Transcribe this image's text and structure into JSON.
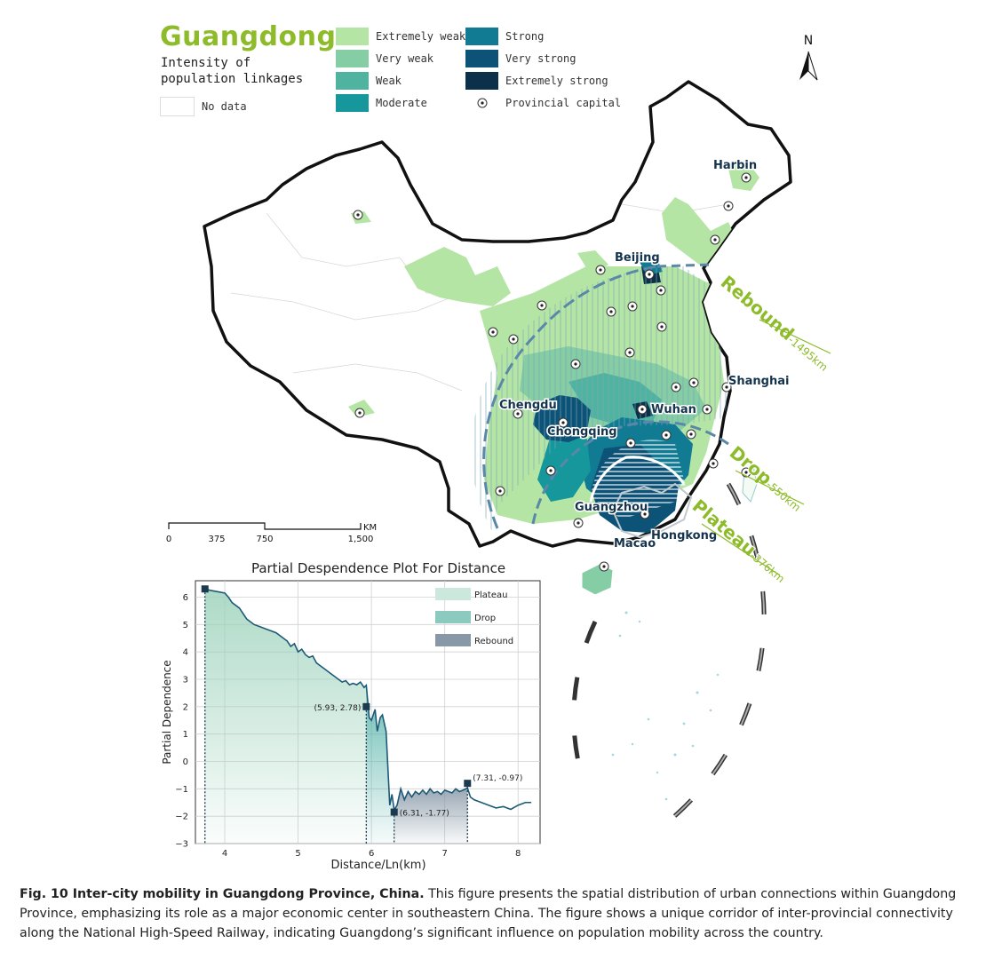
{
  "map": {
    "title": "Guangdong",
    "subtitle": "Intensity of population linkages",
    "no_data_label": "No data",
    "north_label": "N",
    "legend": [
      {
        "label": "Extremely weak",
        "color": "#b5e5a4"
      },
      {
        "label": "Very weak",
        "color": "#85cda4"
      },
      {
        "label": "Weak",
        "color": "#4fb39f"
      },
      {
        "label": "Moderate",
        "color": "#15979c"
      },
      {
        "label": "Strong",
        "color": "#117b93"
      },
      {
        "label": "Very strong",
        "color": "#0d5277"
      },
      {
        "label": "Extremely strong",
        "color": "#0c2f4a"
      },
      {
        "label": "Provincial capital",
        "color": "#000000"
      }
    ],
    "cities": {
      "harbin": "Harbin",
      "beijing": "Beijing",
      "shanghai": "Shanghai",
      "chengdu": "Chengdu",
      "chongqing": "Chongqing",
      "wuhan": "Wuhan",
      "guangzhou": "Guangzhou",
      "hongkong": "Hongkong",
      "macao": "Macao"
    },
    "zones": {
      "rebound_word": "Rebound",
      "rebound_dist": "-1495km",
      "drop_word": "Drop",
      "drop_dist": "-550km",
      "plateau_word": "Plateau",
      "plateau_dist": "-376km"
    },
    "scale_bar": {
      "ticks": [
        "0",
        "375",
        "750",
        "1,500"
      ],
      "unit": "KM"
    }
  },
  "chart_data": {
    "type": "line",
    "title": "Partial Despendence Plot For Distance",
    "xlabel": "Distance/Ln(km)",
    "ylabel": "Partial Dependence",
    "xlim": [
      3.6,
      8.3
    ],
    "ylim": [
      -3,
      6.6
    ],
    "xticks": [
      4,
      5,
      6,
      7,
      8
    ],
    "yticks": [
      -3,
      -2,
      -1,
      0,
      1,
      2,
      3,
      4,
      5,
      6
    ],
    "grid": true,
    "legend_position": "top-right",
    "legend": [
      {
        "label": "Plateau",
        "color": "#cce8dc"
      },
      {
        "label": "Drop",
        "color": "#8ccac0"
      },
      {
        "label": "Rebound",
        "color": "#8898a6"
      }
    ],
    "series": [
      {
        "x": [
          3.73,
          3.8,
          3.9,
          4.0,
          4.05,
          4.1,
          4.2,
          4.25,
          4.3,
          4.35,
          4.4,
          4.5,
          4.55,
          4.6,
          4.7,
          4.8,
          4.85,
          4.9,
          4.95,
          5.0,
          5.05,
          5.1,
          5.15,
          5.2,
          5.25,
          5.3,
          5.35,
          5.4,
          5.45,
          5.5,
          5.55,
          5.6,
          5.65,
          5.7,
          5.75,
          5.8,
          5.85,
          5.9,
          5.93,
          5.97,
          6.0,
          6.05,
          6.08,
          6.12,
          6.15,
          6.2,
          6.25,
          6.28,
          6.31,
          6.35,
          6.4,
          6.45,
          6.5,
          6.55,
          6.6,
          6.65,
          6.7,
          6.75,
          6.8,
          6.85,
          6.9,
          6.95,
          7.0,
          7.05,
          7.1,
          7.15,
          7.2,
          7.25,
          7.31,
          7.35,
          7.4,
          7.5,
          7.6,
          7.7,
          7.8,
          7.9,
          8.0,
          8.1,
          8.18
        ],
        "y": [
          6.3,
          6.25,
          6.2,
          6.15,
          6.0,
          5.8,
          5.6,
          5.4,
          5.2,
          5.1,
          5.0,
          4.9,
          4.85,
          4.8,
          4.7,
          4.5,
          4.4,
          4.2,
          4.3,
          4.0,
          4.1,
          3.9,
          3.8,
          3.85,
          3.6,
          3.5,
          3.4,
          3.3,
          3.2,
          3.1,
          3.0,
          2.9,
          2.95,
          2.8,
          2.85,
          2.8,
          2.9,
          2.7,
          2.78,
          1.6,
          1.5,
          1.9,
          1.1,
          1.6,
          1.7,
          1.1,
          -1.6,
          -1.2,
          -1.77,
          -1.6,
          -1.0,
          -1.4,
          -1.1,
          -1.3,
          -1.1,
          -1.2,
          -1.05,
          -1.2,
          -1.0,
          -1.15,
          -1.1,
          -1.2,
          -1.05,
          -1.1,
          -1.15,
          -1.0,
          -1.1,
          -1.05,
          -0.97,
          -1.3,
          -1.4,
          -1.5,
          -1.6,
          -1.7,
          -1.65,
          -1.75,
          -1.6,
          -1.5,
          -1.5
        ]
      }
    ],
    "zones": [
      {
        "name": "Plateau",
        "x_start": 3.73,
        "x_end": 5.93
      },
      {
        "name": "Drop",
        "x_start": 5.93,
        "x_end": 6.31
      },
      {
        "name": "Rebound",
        "x_start": 6.31,
        "x_end": 7.31
      }
    ],
    "points": [
      {
        "x": 3.73,
        "y": 6.3,
        "label": ""
      },
      {
        "x": 5.93,
        "y": 2.0,
        "label": "(5.93, 2.78)"
      },
      {
        "x": 6.31,
        "y": -1.85,
        "label": "(6.31, -1.77)"
      },
      {
        "x": 7.31,
        "y": -0.8,
        "label": "(7.31, -0.97)"
      }
    ]
  },
  "caption": {
    "lead": "Fig. 10 Inter-city mobility in Guangdong Province, China.",
    "text": " This figure presents the spatial distribution of urban connections within Guangdong Province, emphasizing its role as a major economic center in southeastern China. The figure shows a unique corridor of inter-provincial connectivity along the National High-Speed Railway, indicating Guangdong’s significant influence on population mobility across the country."
  }
}
